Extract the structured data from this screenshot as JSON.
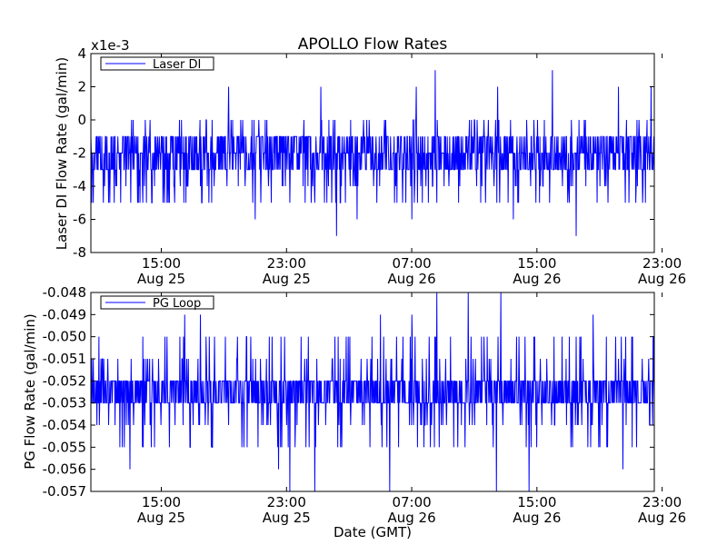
{
  "figure": {
    "title": "APOLLO Flow Rates",
    "xlabel": "Date (GMT)"
  },
  "colors": {
    "series": "#0000ff",
    "axes": "#000000",
    "background": "#ffffff"
  },
  "chart_data": [
    {
      "type": "line",
      "ylabel": "Laser DI Flow Rate (gal/min)",
      "offset_label": "x1e-3",
      "ylim": [
        -0.008,
        0.004
      ],
      "yticks": [
        -0.008,
        -0.006,
        -0.004,
        -0.002,
        0.0,
        0.002,
        0.004
      ],
      "ytick_labels": [
        "-8",
        "-6",
        "-4",
        "-2",
        "0",
        "2",
        "4"
      ],
      "xlim_hours_from_aug25_0000": [
        10.5,
        46.5
      ],
      "xtick_positions_hours": [
        15,
        23,
        31,
        39,
        47
      ],
      "xtick_labels": [
        [
          "15:00",
          "Aug 25"
        ],
        [
          "23:00",
          "Aug 25"
        ],
        [
          "07:00",
          "Aug 26"
        ],
        [
          "15:00",
          "Aug 26"
        ],
        [
          "23:00",
          "Aug 26"
        ]
      ],
      "grid": false,
      "legend": "top-left",
      "series": [
        {
          "name": "Laser DI",
          "baseline_values": [
            -0.001,
            -0.002,
            -0.003
          ],
          "noise_range": [
            -0.005,
            0.0
          ],
          "spike_values": [
            {
              "x_hours": 19.3,
              "y": 0.002
            },
            {
              "x_hours": 25.2,
              "y": 0.002
            },
            {
              "x_hours": 31.3,
              "y": 0.002
            },
            {
              "x_hours": 32.5,
              "y": 0.003
            },
            {
              "x_hours": 36.5,
              "y": 0.002
            },
            {
              "x_hours": 40.0,
              "y": 0.003
            },
            {
              "x_hours": 44.2,
              "y": 0.002
            },
            {
              "x_hours": 46.3,
              "y": 0.002
            },
            {
              "x_hours": 26.2,
              "y": -0.007
            },
            {
              "x_hours": 41.5,
              "y": -0.007
            },
            {
              "x_hours": 21.0,
              "y": -0.006
            },
            {
              "x_hours": 27.5,
              "y": -0.006
            },
            {
              "x_hours": 31.0,
              "y": -0.006
            },
            {
              "x_hours": 37.5,
              "y": -0.006
            }
          ]
        }
      ]
    },
    {
      "type": "line",
      "ylabel": "PG Flow Rate (gal/min)",
      "ylim": [
        -0.057,
        -0.048
      ],
      "yticks": [
        -0.057,
        -0.056,
        -0.055,
        -0.054,
        -0.053,
        -0.052,
        -0.051,
        -0.05,
        -0.049,
        -0.048
      ],
      "ytick_labels": [
        "-0.057",
        "-0.056",
        "-0.055",
        "-0.054",
        "-0.053",
        "-0.052",
        "-0.051",
        "-0.050",
        "-0.049",
        "-0.048"
      ],
      "xlim_hours_from_aug25_0000": [
        10.5,
        46.5
      ],
      "xtick_positions_hours": [
        15,
        23,
        31,
        39,
        47
      ],
      "xtick_labels": [
        [
          "15:00",
          "Aug 25"
        ],
        [
          "23:00",
          "Aug 25"
        ],
        [
          "07:00",
          "Aug 26"
        ],
        [
          "15:00",
          "Aug 26"
        ],
        [
          "23:00",
          "Aug 26"
        ]
      ],
      "grid": false,
      "legend": "top-left",
      "series": [
        {
          "name": "PG Loop",
          "baseline_values": [
            -0.052,
            -0.053
          ],
          "noise_range": [
            -0.055,
            -0.05
          ],
          "spike_values": [
            {
              "x_hours": 16.5,
              "y": -0.049
            },
            {
              "x_hours": 17.5,
              "y": -0.049
            },
            {
              "x_hours": 29.0,
              "y": -0.049
            },
            {
              "x_hours": 31.0,
              "y": -0.049
            },
            {
              "x_hours": 32.6,
              "y": -0.048
            },
            {
              "x_hours": 34.6,
              "y": -0.048
            },
            {
              "x_hours": 36.7,
              "y": -0.048
            },
            {
              "x_hours": 42.6,
              "y": -0.049
            },
            {
              "x_hours": 13.0,
              "y": -0.056
            },
            {
              "x_hours": 22.5,
              "y": -0.056
            },
            {
              "x_hours": 23.2,
              "y": -0.057
            },
            {
              "x_hours": 24.8,
              "y": -0.057
            },
            {
              "x_hours": 29.6,
              "y": -0.057
            },
            {
              "x_hours": 36.4,
              "y": -0.057
            },
            {
              "x_hours": 38.5,
              "y": -0.057
            },
            {
              "x_hours": 44.5,
              "y": -0.056
            }
          ]
        }
      ]
    }
  ]
}
